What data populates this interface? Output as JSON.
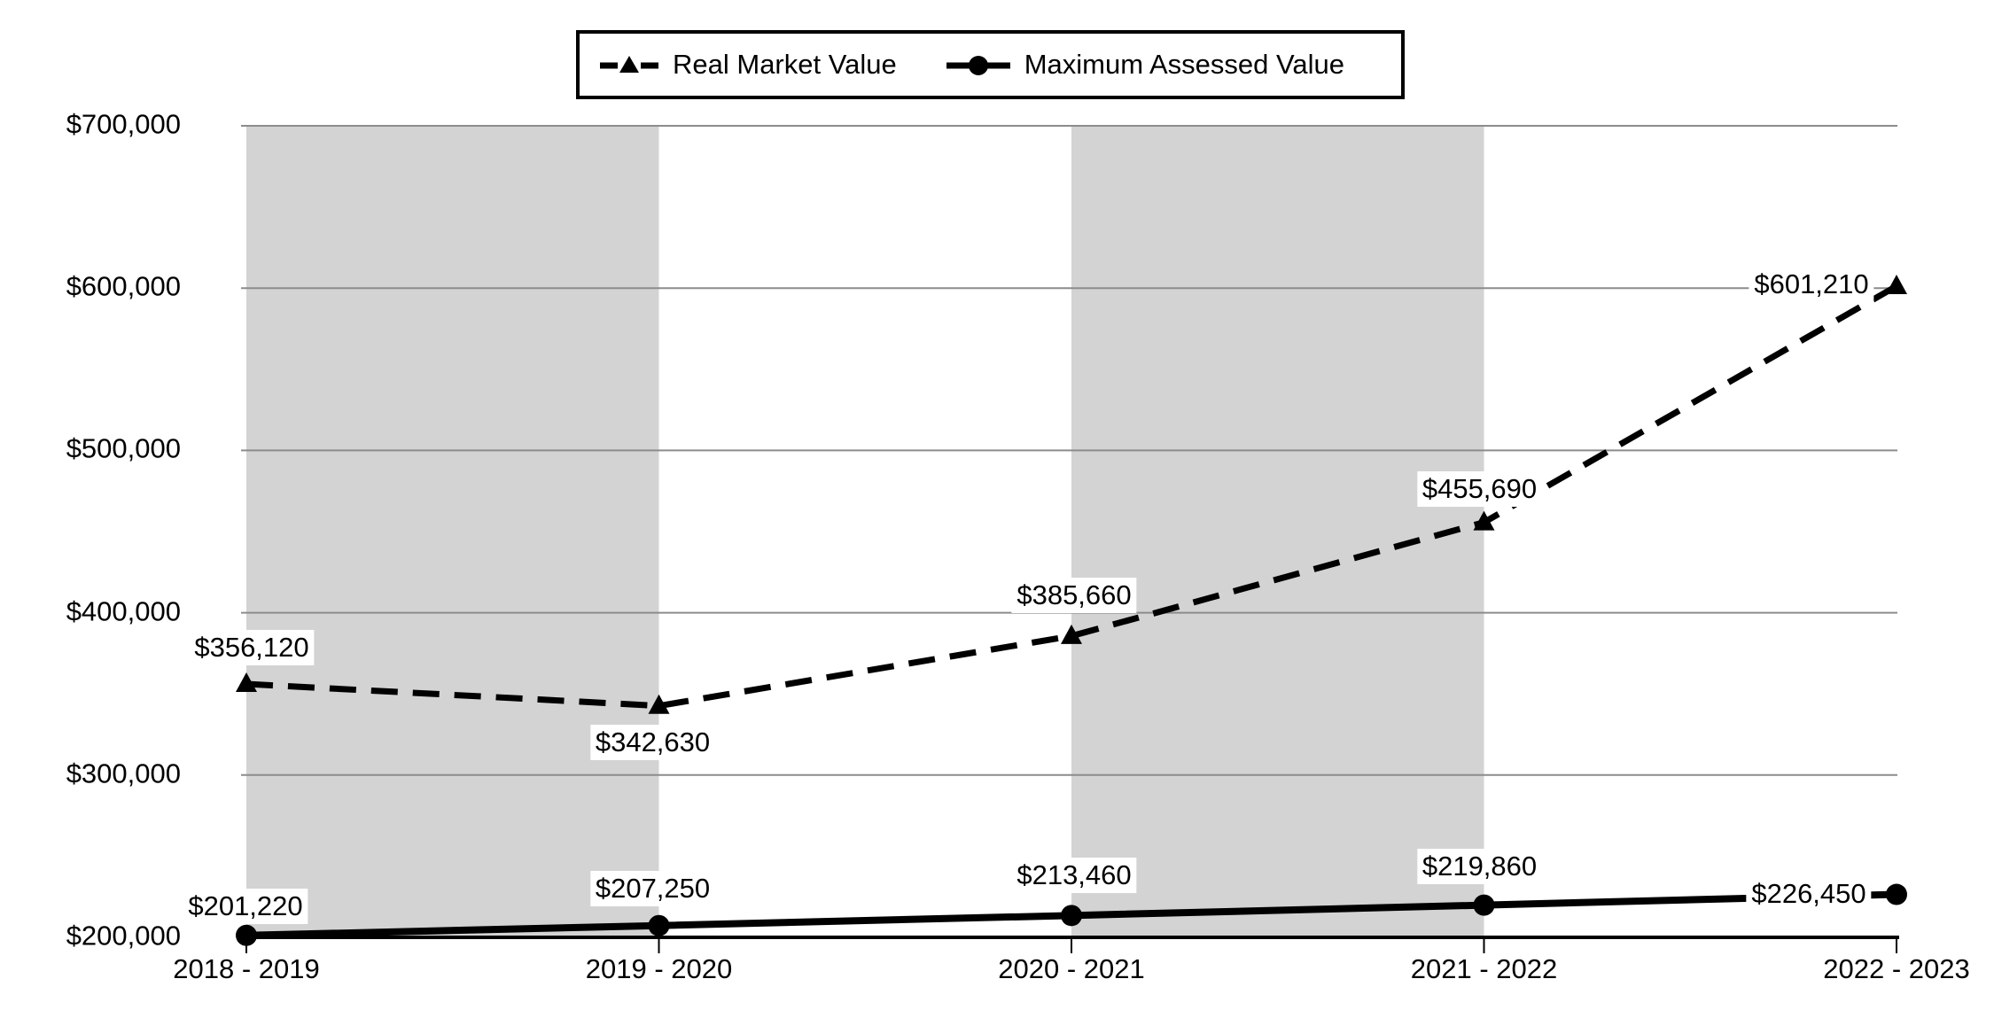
{
  "chart_data": {
    "type": "line",
    "title": "",
    "xlabel": "",
    "ylabel": "",
    "categories": [
      "2018 - 2019",
      "2019 - 2020",
      "2020 - 2021",
      "2021 - 2022",
      "2022 - 2023"
    ],
    "series": [
      {
        "name": "Real Market Value",
        "values": [
          356120,
          342630,
          385660,
          455690,
          601210
        ],
        "labels": [
          "$356,120",
          "$342,630",
          "$385,660",
          "$455,690",
          "$601,210"
        ],
        "line_style": "dashed",
        "marker": "triangle",
        "label_offsets": [
          [
            6,
            -41
          ],
          [
            -7,
            41
          ],
          [
            3,
            -46
          ],
          [
            -5,
            -38
          ],
          [
            -96,
            -2
          ]
        ]
      },
      {
        "name": "Maximum Assessed Value",
        "values": [
          201220,
          207250,
          213460,
          219860,
          226450
        ],
        "labels": [
          "$201,220",
          "$207,250",
          "$213,460",
          "$219,860",
          "$226,450"
        ],
        "line_style": "solid",
        "marker": "circle",
        "label_offsets": [
          [
            -1,
            -33
          ],
          [
            -7,
            -42
          ],
          [
            3,
            -45
          ],
          [
            -5,
            -44
          ],
          [
            -99,
            -1
          ]
        ]
      }
    ],
    "y_axis": {
      "min": 200000,
      "max": 700000,
      "step": 100000,
      "tick_labels": [
        "$200,000",
        "$300,000",
        "$400,000",
        "$500,000",
        "$600,000",
        "$700,000"
      ]
    },
    "x_axis": {
      "ticks": true
    },
    "grid": "horizontal",
    "legend_position": "top",
    "shaded_intervals": [
      [
        0,
        1
      ],
      [
        2,
        3
      ]
    ],
    "colors": {
      "series": "#000000",
      "band": "#d3d3d3",
      "gridline": "#8c8c8c",
      "axis": "#000000",
      "background": "#ffffff",
      "label_bg": "#ffffff"
    }
  }
}
